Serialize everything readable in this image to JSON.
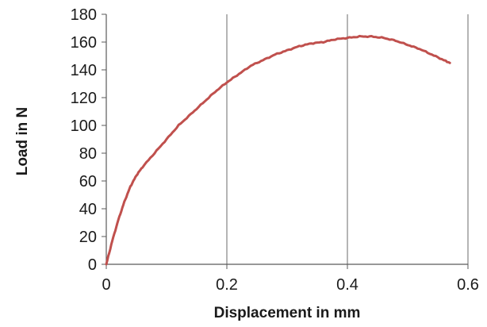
{
  "chart_data": {
    "type": "line",
    "title": "",
    "xlabel": "Displacement in mm",
    "ylabel": "Load in N",
    "xlim": [
      0,
      0.6
    ],
    "ylim": [
      0,
      180
    ],
    "x_ticks": [
      "0",
      "0.2",
      "0.4",
      "0.6"
    ],
    "y_ticks": [
      "0",
      "20",
      "40",
      "60",
      "80",
      "100",
      "120",
      "140",
      "160",
      "180"
    ],
    "grid": "vertical gridlines at x tick positions",
    "legend": "none",
    "series": [
      {
        "color": "#c0504d",
        "x": [
          0,
          0.01,
          0.02,
          0.03,
          0.04,
          0.05,
          0.06,
          0.08,
          0.1,
          0.12,
          0.14,
          0.16,
          0.18,
          0.2,
          0.22,
          0.24,
          0.26,
          0.28,
          0.3,
          0.32,
          0.34,
          0.36,
          0.38,
          0.4,
          0.42,
          0.44,
          0.46,
          0.48,
          0.5,
          0.52,
          0.54,
          0.56,
          0.57
        ],
        "y": [
          0,
          17,
          32,
          45,
          56,
          64,
          70,
          80,
          90,
          100,
          108,
          116,
          124,
          131,
          137,
          143,
          147,
          151,
          154,
          157,
          159,
          160,
          162,
          163,
          164,
          164,
          163,
          161,
          158,
          155,
          151,
          147,
          145
        ]
      }
    ]
  }
}
